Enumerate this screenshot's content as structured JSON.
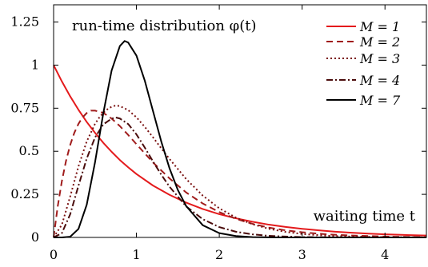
{
  "chart_data": {
    "type": "line",
    "title": "",
    "xlabel": "",
    "ylabel": "",
    "xlim": [
      0,
      4.5
    ],
    "ylim": [
      0,
      1.35
    ],
    "x_ticks": [
      "0",
      "1",
      "2",
      "3",
      "4"
    ],
    "x_tick_values": [
      0,
      1,
      2,
      3,
      4
    ],
    "y_ticks": [
      "0",
      "0.25",
      "0.5",
      "0.75",
      "1",
      "1.25"
    ],
    "y_tick_values": [
      0,
      0.25,
      0.5,
      0.75,
      1,
      1.25
    ],
    "annotations": [
      {
        "text": "run-time distribution φ(t)"
      },
      {
        "text": "waiting time t"
      }
    ],
    "legend_position": "top-right",
    "grid": false,
    "series": [
      {
        "name": "M = 1",
        "M": 1,
        "color": "#e41a1c",
        "dash": "solid",
        "x": [
          0,
          0.1,
          0.2,
          0.3,
          0.4,
          0.5,
          0.6,
          0.7,
          0.8,
          0.9,
          1.0,
          1.2,
          1.4,
          1.6,
          1.8,
          2.0,
          2.2,
          2.4,
          2.6,
          2.8,
          3.0,
          3.2,
          3.4,
          3.6,
          3.8,
          4.0,
          4.2,
          4.4,
          4.5
        ],
        "y": [
          1.0,
          0.905,
          0.819,
          0.741,
          0.67,
          0.607,
          0.549,
          0.497,
          0.449,
          0.407,
          0.368,
          0.301,
          0.247,
          0.202,
          0.165,
          0.135,
          0.111,
          0.091,
          0.074,
          0.061,
          0.05,
          0.041,
          0.033,
          0.027,
          0.022,
          0.018,
          0.015,
          0.012,
          0.011
        ]
      },
      {
        "name": "M = 2",
        "M": 2,
        "color": "#a01c1c",
        "dash": "dashed",
        "x": [
          0,
          0.05,
          0.1,
          0.15,
          0.2,
          0.25,
          0.3,
          0.35,
          0.4,
          0.45,
          0.5,
          0.6,
          0.7,
          0.8,
          0.9,
          1.0,
          1.1,
          1.2,
          1.4,
          1.6,
          1.8,
          2.0,
          2.2,
          2.4,
          2.6,
          2.8,
          3.0,
          3.3,
          3.6,
          4.0,
          4.5
        ],
        "y": [
          0,
          0.181,
          0.327,
          0.444,
          0.536,
          0.607,
          0.659,
          0.697,
          0.722,
          0.736,
          0.736,
          0.723,
          0.69,
          0.646,
          0.595,
          0.541,
          0.488,
          0.435,
          0.342,
          0.261,
          0.197,
          0.147,
          0.108,
          0.079,
          0.057,
          0.041,
          0.03,
          0.018,
          0.011,
          0.005,
          0.001
        ]
      },
      {
        "name": "M = 3",
        "M": 3,
        "color": "#7a1010",
        "dash": "dotted",
        "x": [
          0,
          0.1,
          0.2,
          0.3,
          0.4,
          0.5,
          0.55,
          0.6,
          0.67,
          0.75,
          0.8,
          0.9,
          1.0,
          1.1,
          1.2,
          1.3,
          1.4,
          1.6,
          1.8,
          2.0,
          2.2,
          2.4,
          2.6,
          2.8,
          3.0,
          3.3,
          3.6,
          4.0,
          4.5
        ],
        "y": [
          0,
          0.074,
          0.237,
          0.412,
          0.557,
          0.659,
          0.695,
          0.723,
          0.752,
          0.766,
          0.762,
          0.739,
          0.697,
          0.642,
          0.581,
          0.517,
          0.455,
          0.339,
          0.243,
          0.169,
          0.115,
          0.077,
          0.05,
          0.032,
          0.02,
          0.01,
          0.005,
          0.002,
          0.0004
        ]
      },
      {
        "name": "M = 4",
        "M": 4,
        "color": "#4a0c0c",
        "dash": "dashdot",
        "x": [
          0,
          0.1,
          0.2,
          0.3,
          0.4,
          0.5,
          0.6,
          0.7,
          0.75,
          0.8,
          0.9,
          1.0,
          1.1,
          1.2,
          1.3,
          1.4,
          1.6,
          1.8,
          2.0,
          2.2,
          2.4,
          2.6,
          2.8,
          3.0,
          3.3,
          3.6,
          4.0,
          4.5
        ],
        "y": [
          0,
          0.025,
          0.134,
          0.3,
          0.458,
          0.58,
          0.656,
          0.689,
          0.696,
          0.69,
          0.658,
          0.598,
          0.522,
          0.441,
          0.364,
          0.294,
          0.18,
          0.106,
          0.06,
          0.033,
          0.018,
          0.009,
          0.005,
          0.002,
          0.001,
          0.0003,
          0.0001,
          0
        ]
      },
      {
        "name": "M = 7",
        "M": 7,
        "color": "#000000",
        "dash": "solid",
        "x": [
          0,
          0.1,
          0.2,
          0.3,
          0.4,
          0.5,
          0.6,
          0.7,
          0.8,
          0.857,
          0.9,
          1.0,
          1.1,
          1.2,
          1.3,
          1.4,
          1.5,
          1.6,
          1.8,
          2.0,
          2.2,
          2.4,
          2.6,
          2.8,
          3.0,
          3.5,
          4.0,
          4.5
        ],
        "y": [
          0,
          0.0001,
          0.004,
          0.049,
          0.19,
          0.436,
          0.721,
          0.968,
          1.111,
          1.14,
          1.131,
          1.055,
          0.911,
          0.733,
          0.556,
          0.4,
          0.275,
          0.182,
          0.071,
          0.025,
          0.008,
          0.002,
          0.0007,
          0.0002,
          5e-05,
          0,
          0,
          0
        ]
      }
    ]
  }
}
